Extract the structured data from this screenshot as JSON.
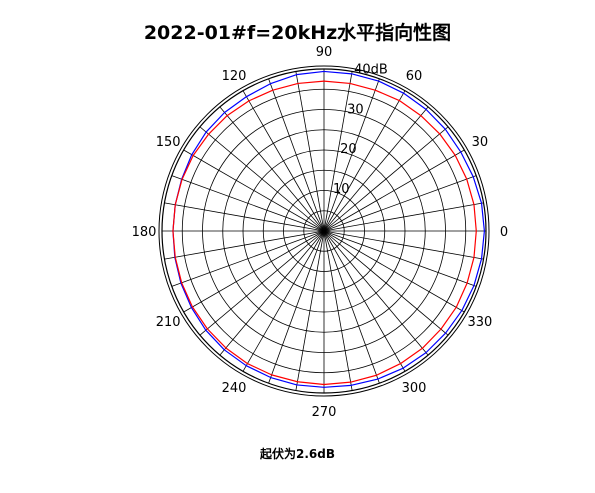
{
  "chart_data": {
    "type": "polar-line",
    "title": "2022-01#f=20kHz水平指向性图",
    "footer": "起伏为2.6dB",
    "radial_unit": "dB",
    "r_range": [
      0,
      40
    ],
    "radial_ticks": [
      {
        "value": 10,
        "label": "10"
      },
      {
        "value": 20,
        "label": "20"
      },
      {
        "value": 30,
        "label": "30"
      },
      {
        "value": 40,
        "label": "40dB"
      }
    ],
    "angle_labels": [
      {
        "deg": 0,
        "label": "0"
      },
      {
        "deg": 30,
        "label": "30"
      },
      {
        "deg": 60,
        "label": "60"
      },
      {
        "deg": 90,
        "label": "90"
      },
      {
        "deg": 120,
        "label": "120"
      },
      {
        "deg": 150,
        "label": "150"
      },
      {
        "deg": 180,
        "label": "180"
      },
      {
        "deg": 210,
        "label": "210"
      },
      {
        "deg": 240,
        "label": "240"
      },
      {
        "deg": 270,
        "label": "270"
      },
      {
        "deg": 300,
        "label": "300"
      },
      {
        "deg": 330,
        "label": "330"
      }
    ],
    "spoke_step_deg": 10,
    "grid": true,
    "series": [
      {
        "color": "#0000ff",
        "angles": [
          0,
          10,
          20,
          30,
          40,
          50,
          60,
          70,
          80,
          90,
          100,
          110,
          120,
          130,
          140,
          150,
          160,
          170,
          180,
          190,
          200,
          210,
          220,
          230,
          240,
          250,
          260,
          270,
          280,
          290,
          300,
          310,
          320,
          330,
          340,
          350
        ],
        "values": [
          39.6,
          39.5,
          39.2,
          39.0,
          39.1,
          39.2,
          39.3,
          39.4,
          39.4,
          39.4,
          39.2,
          38.7,
          38.3,
          38.2,
          38.0,
          37.7,
          37.4,
          37.3,
          37.3,
          37.4,
          37.6,
          37.8,
          38.1,
          38.3,
          38.4,
          38.5,
          38.6,
          38.6,
          38.7,
          38.9,
          39.1,
          39.2,
          39.2,
          39.3,
          39.4,
          39.5
        ]
      },
      {
        "color": "#ff0000",
        "angles": [
          0,
          10,
          20,
          30,
          40,
          50,
          60,
          70,
          80,
          90,
          100,
          110,
          120,
          130,
          140,
          150,
          160,
          170,
          180,
          190,
          200,
          210,
          220,
          230,
          240,
          250,
          260,
          270,
          280,
          290,
          300,
          310,
          320,
          330,
          340,
          350
        ],
        "values": [
          37.6,
          37.6,
          37.5,
          37.4,
          37.3,
          37.2,
          37.2,
          37.0,
          37.0,
          37.0,
          37.0,
          37.0,
          37.1,
          37.2,
          37.2,
          37.3,
          37.3,
          37.3,
          37.3,
          37.3,
          37.4,
          37.5,
          37.6,
          37.7,
          37.8,
          37.8,
          37.8,
          37.9,
          37.9,
          37.9,
          37.8,
          37.8,
          37.7,
          37.7,
          37.6,
          37.6
        ]
      }
    ]
  }
}
